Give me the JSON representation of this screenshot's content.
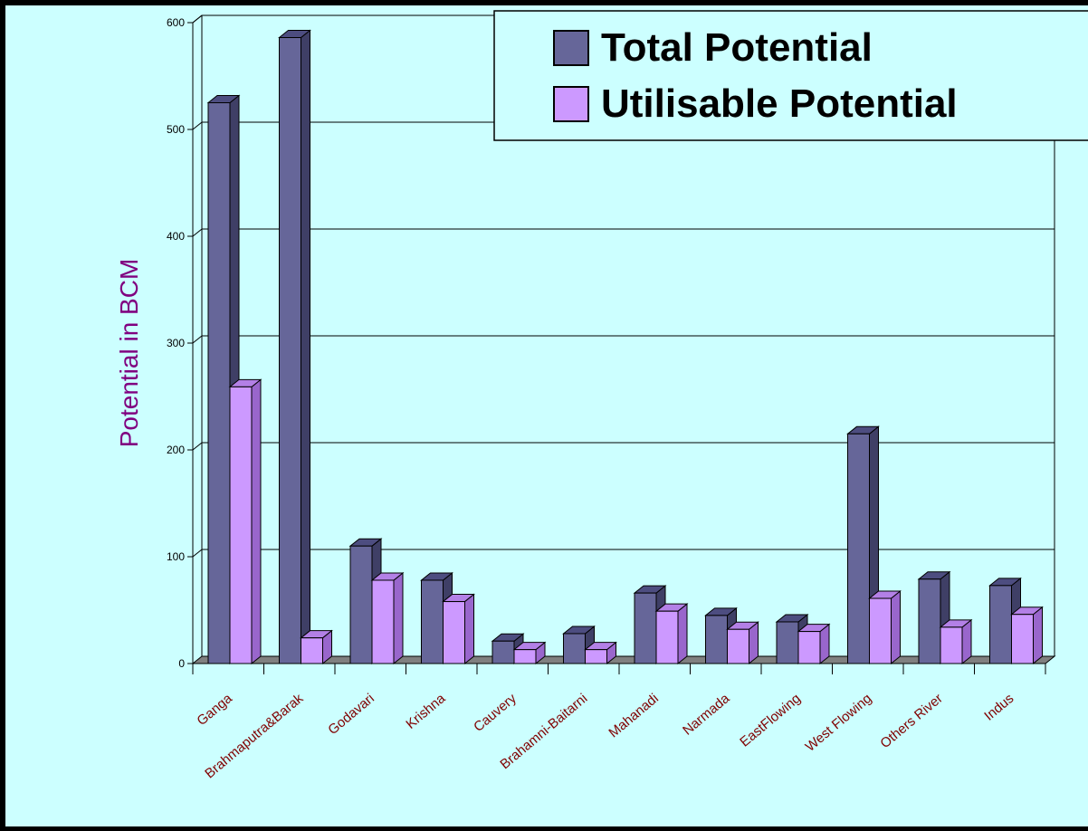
{
  "chart_data": {
    "type": "bar",
    "categories": [
      "Ganga",
      "Brahmaputra&Barak",
      "Godavari",
      "Krishna",
      "Cauvery",
      "Brahamni-Baitarni",
      "Mahanadi",
      "Narmada",
      "EastFlowing",
      "West Flowing",
      "Others River",
      "Indus"
    ],
    "series": [
      {
        "name": "Total Potential",
        "values": [
          525,
          586,
          110,
          78,
          21,
          28,
          66,
          45,
          39,
          215,
          79,
          73
        ]
      },
      {
        "name": "Utilisable Potential",
        "values": [
          259,
          24,
          78,
          58,
          13,
          13,
          49,
          32,
          30,
          61,
          34,
          46
        ]
      }
    ],
    "title": "",
    "xlabel": "",
    "ylabel": "Potential in BCM",
    "ylim": [
      0,
      600
    ],
    "yticks": [
      0,
      100,
      200,
      300,
      400,
      500,
      600
    ],
    "grid": true,
    "legend_position": "top-right",
    "colors": {
      "background": "#ccffff",
      "frame": "#000000",
      "total_front": "#666699",
      "total_side": "#3f3f66",
      "total_top": "#4d4d80",
      "util_front": "#cc99ff",
      "util_side": "#9966cc",
      "util_top": "#b380e6",
      "floor": "#808080",
      "ylabel": "#800080",
      "category_label": "#800000",
      "grid": "#000000"
    }
  }
}
